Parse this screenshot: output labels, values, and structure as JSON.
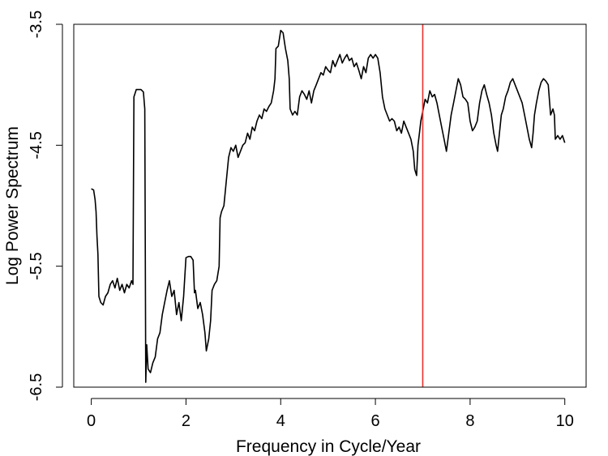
{
  "chart_data": {
    "type": "line",
    "title": "",
    "xlabel": "Frequency in Cycle/Year",
    "ylabel": "Log Power Spectrum",
    "xlim": [
      -0.37,
      10.45
    ],
    "ylim": [
      -6.5,
      -3.5
    ],
    "x_ticks": [
      0,
      2,
      4,
      6,
      8,
      10
    ],
    "y_ticks": [
      -3.5,
      -4.5,
      -5.5,
      -6.5
    ],
    "x_tick_labels": [
      "0",
      "2",
      "4",
      "6",
      "8",
      "10"
    ],
    "y_tick_labels": [
      "-3.5",
      "-4.5",
      "-5.5",
      "-6.5"
    ],
    "grid": false,
    "legend": "none",
    "vertical_line": {
      "x": 7.0,
      "color": "#e8312b"
    },
    "series": [
      {
        "color": "#000000",
        "points": [
          [
            0.0,
            -4.86
          ],
          [
            0.05,
            -4.87
          ],
          [
            0.08,
            -4.95
          ],
          [
            0.1,
            -5.05
          ],
          [
            0.12,
            -5.25
          ],
          [
            0.14,
            -5.4
          ],
          [
            0.16,
            -5.75
          ],
          [
            0.2,
            -5.8
          ],
          [
            0.25,
            -5.82
          ],
          [
            0.3,
            -5.75
          ],
          [
            0.35,
            -5.72
          ],
          [
            0.4,
            -5.65
          ],
          [
            0.45,
            -5.62
          ],
          [
            0.5,
            -5.68
          ],
          [
            0.55,
            -5.6
          ],
          [
            0.6,
            -5.7
          ],
          [
            0.65,
            -5.65
          ],
          [
            0.7,
            -5.72
          ],
          [
            0.75,
            -5.65
          ],
          [
            0.8,
            -5.68
          ],
          [
            0.85,
            -5.62
          ],
          [
            0.88,
            -5.65
          ],
          [
            0.9,
            -4.1
          ],
          [
            0.95,
            -4.04
          ],
          [
            1.0,
            -4.04
          ],
          [
            1.05,
            -4.04
          ],
          [
            1.1,
            -4.06
          ],
          [
            1.13,
            -4.2
          ],
          [
            1.15,
            -6.46
          ],
          [
            1.17,
            -6.15
          ],
          [
            1.2,
            -6.35
          ],
          [
            1.25,
            -6.38
          ],
          [
            1.3,
            -6.3
          ],
          [
            1.35,
            -6.25
          ],
          [
            1.4,
            -6.1
          ],
          [
            1.45,
            -6.05
          ],
          [
            1.5,
            -5.9
          ],
          [
            1.55,
            -5.8
          ],
          [
            1.6,
            -5.7
          ],
          [
            1.65,
            -5.62
          ],
          [
            1.7,
            -5.75
          ],
          [
            1.75,
            -5.7
          ],
          [
            1.8,
            -5.9
          ],
          [
            1.85,
            -5.8
          ],
          [
            1.9,
            -5.95
          ],
          [
            1.95,
            -5.75
          ],
          [
            1.98,
            -5.55
          ],
          [
            2.0,
            -5.43
          ],
          [
            2.05,
            -5.42
          ],
          [
            2.1,
            -5.42
          ],
          [
            2.15,
            -5.45
          ],
          [
            2.18,
            -5.72
          ],
          [
            2.2,
            -5.7
          ],
          [
            2.25,
            -5.85
          ],
          [
            2.3,
            -5.8
          ],
          [
            2.35,
            -5.9
          ],
          [
            2.4,
            -6.05
          ],
          [
            2.43,
            -6.2
          ],
          [
            2.48,
            -6.1
          ],
          [
            2.52,
            -5.95
          ],
          [
            2.55,
            -5.7
          ],
          [
            2.6,
            -5.65
          ],
          [
            2.65,
            -5.62
          ],
          [
            2.7,
            -5.5
          ],
          [
            2.72,
            -5.1
          ],
          [
            2.75,
            -5.05
          ],
          [
            2.8,
            -5.0
          ],
          [
            2.85,
            -4.8
          ],
          [
            2.9,
            -4.6
          ],
          [
            2.95,
            -4.52
          ],
          [
            3.0,
            -4.55
          ],
          [
            3.05,
            -4.5
          ],
          [
            3.1,
            -4.6
          ],
          [
            3.15,
            -4.55
          ],
          [
            3.2,
            -4.5
          ],
          [
            3.25,
            -4.48
          ],
          [
            3.3,
            -4.4
          ],
          [
            3.35,
            -4.45
          ],
          [
            3.4,
            -4.35
          ],
          [
            3.45,
            -4.38
          ],
          [
            3.5,
            -4.3
          ],
          [
            3.55,
            -4.25
          ],
          [
            3.6,
            -4.28
          ],
          [
            3.65,
            -4.2
          ],
          [
            3.7,
            -4.22
          ],
          [
            3.75,
            -4.18
          ],
          [
            3.8,
            -4.15
          ],
          [
            3.85,
            -4.05
          ],
          [
            3.88,
            -3.95
          ],
          [
            3.9,
            -3.7
          ],
          [
            3.95,
            -3.68
          ],
          [
            4.0,
            -3.55
          ],
          [
            4.05,
            -3.57
          ],
          [
            4.1,
            -3.7
          ],
          [
            4.15,
            -3.8
          ],
          [
            4.18,
            -3.95
          ],
          [
            4.2,
            -4.2
          ],
          [
            4.25,
            -4.25
          ],
          [
            4.3,
            -4.22
          ],
          [
            4.35,
            -4.25
          ],
          [
            4.4,
            -4.1
          ],
          [
            4.45,
            -4.05
          ],
          [
            4.5,
            -4.08
          ],
          [
            4.55,
            -4.12
          ],
          [
            4.6,
            -4.05
          ],
          [
            4.65,
            -4.15
          ],
          [
            4.7,
            -4.05
          ],
          [
            4.75,
            -4.0
          ],
          [
            4.8,
            -3.95
          ],
          [
            4.85,
            -3.9
          ],
          [
            4.9,
            -3.92
          ],
          [
            4.95,
            -3.85
          ],
          [
            5.0,
            -3.88
          ],
          [
            5.05,
            -3.9
          ],
          [
            5.1,
            -3.8
          ],
          [
            5.15,
            -3.85
          ],
          [
            5.2,
            -3.8
          ],
          [
            5.25,
            -3.75
          ],
          [
            5.3,
            -3.82
          ],
          [
            5.35,
            -3.78
          ],
          [
            5.4,
            -3.75
          ],
          [
            5.45,
            -3.8
          ],
          [
            5.5,
            -3.78
          ],
          [
            5.55,
            -3.85
          ],
          [
            5.6,
            -3.82
          ],
          [
            5.65,
            -3.88
          ],
          [
            5.7,
            -3.95
          ],
          [
            5.75,
            -3.85
          ],
          [
            5.8,
            -3.9
          ],
          [
            5.85,
            -3.78
          ],
          [
            5.9,
            -3.75
          ],
          [
            5.95,
            -3.78
          ],
          [
            6.0,
            -3.75
          ],
          [
            6.05,
            -3.78
          ],
          [
            6.1,
            -3.9
          ],
          [
            6.15,
            -4.1
          ],
          [
            6.2,
            -4.2
          ],
          [
            6.25,
            -4.25
          ],
          [
            6.3,
            -4.3
          ],
          [
            6.35,
            -4.28
          ],
          [
            6.4,
            -4.3
          ],
          [
            6.45,
            -4.38
          ],
          [
            6.5,
            -4.35
          ],
          [
            6.55,
            -4.4
          ],
          [
            6.6,
            -4.3
          ],
          [
            6.65,
            -4.35
          ],
          [
            6.7,
            -4.4
          ],
          [
            6.75,
            -4.45
          ],
          [
            6.8,
            -4.55
          ],
          [
            6.83,
            -4.7
          ],
          [
            6.87,
            -4.75
          ],
          [
            6.9,
            -4.5
          ],
          [
            6.93,
            -4.4
          ],
          [
            6.96,
            -4.3
          ],
          [
            7.0,
            -4.22
          ],
          [
            7.05,
            -4.12
          ],
          [
            7.1,
            -4.15
          ],
          [
            7.15,
            -4.05
          ],
          [
            7.2,
            -4.1
          ],
          [
            7.25,
            -4.08
          ],
          [
            7.3,
            -4.15
          ],
          [
            7.35,
            -4.25
          ],
          [
            7.4,
            -4.35
          ],
          [
            7.45,
            -4.45
          ],
          [
            7.5,
            -4.55
          ],
          [
            7.55,
            -4.4
          ],
          [
            7.6,
            -4.25
          ],
          [
            7.65,
            -4.15
          ],
          [
            7.7,
            -4.05
          ],
          [
            7.75,
            -3.95
          ],
          [
            7.8,
            -4.0
          ],
          [
            7.85,
            -4.1
          ],
          [
            7.9,
            -4.12
          ],
          [
            7.95,
            -4.15
          ],
          [
            8.0,
            -4.3
          ],
          [
            8.05,
            -4.38
          ],
          [
            8.1,
            -4.35
          ],
          [
            8.15,
            -4.3
          ],
          [
            8.2,
            -4.15
          ],
          [
            8.25,
            -4.05
          ],
          [
            8.3,
            -4.0
          ],
          [
            8.35,
            -4.08
          ],
          [
            8.4,
            -4.15
          ],
          [
            8.45,
            -4.25
          ],
          [
            8.5,
            -4.4
          ],
          [
            8.55,
            -4.5
          ],
          [
            8.58,
            -4.55
          ],
          [
            8.62,
            -4.4
          ],
          [
            8.66,
            -4.25
          ],
          [
            8.7,
            -4.2
          ],
          [
            8.75,
            -4.1
          ],
          [
            8.8,
            -4.05
          ],
          [
            8.85,
            -3.98
          ],
          [
            8.9,
            -3.95
          ],
          [
            8.95,
            -4.0
          ],
          [
            9.0,
            -4.05
          ],
          [
            9.05,
            -4.1
          ],
          [
            9.1,
            -4.15
          ],
          [
            9.15,
            -4.25
          ],
          [
            9.2,
            -4.35
          ],
          [
            9.25,
            -4.45
          ],
          [
            9.3,
            -4.52
          ],
          [
            9.33,
            -4.4
          ],
          [
            9.36,
            -4.25
          ],
          [
            9.4,
            -4.15
          ],
          [
            9.45,
            -4.05
          ],
          [
            9.5,
            -3.98
          ],
          [
            9.55,
            -3.95
          ],
          [
            9.6,
            -3.97
          ],
          [
            9.65,
            -4.0
          ],
          [
            9.7,
            -4.25
          ],
          [
            9.75,
            -4.2
          ],
          [
            9.78,
            -4.25
          ],
          [
            9.8,
            -4.45
          ],
          [
            9.85,
            -4.42
          ],
          [
            9.9,
            -4.45
          ],
          [
            9.95,
            -4.42
          ],
          [
            10.0,
            -4.48
          ]
        ]
      }
    ]
  }
}
